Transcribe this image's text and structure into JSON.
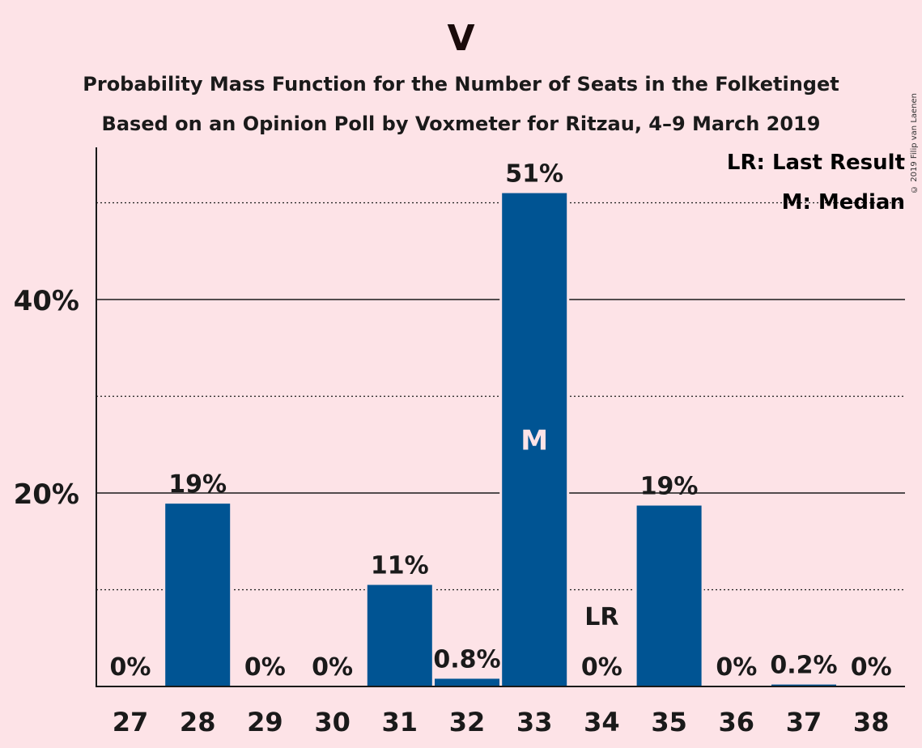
{
  "header": {
    "title": "V",
    "subtitle1": "Probability Mass Function for the Number of Seats in the Folketinget",
    "subtitle2": "Based on an Opinion Poll by Voxmeter for Ritzau, 4–9 March 2019",
    "copyright": "© 2019 Filip van Laenen"
  },
  "legend": {
    "last_result": "LR: Last Result",
    "median": "M: Median"
  },
  "colors": {
    "bar": "#005493",
    "background": "#fde3e7",
    "text": "#1a1a1a",
    "median_marker": "#fde3e7"
  },
  "chart_data": {
    "type": "bar",
    "categories": [
      "27",
      "28",
      "29",
      "30",
      "31",
      "32",
      "33",
      "34",
      "35",
      "36",
      "37",
      "38"
    ],
    "values": [
      0,
      18.9,
      0,
      0,
      10.5,
      0.8,
      51,
      0,
      18.7,
      0,
      0.2,
      0
    ],
    "data_labels": [
      "0%",
      "19%",
      "0%",
      "0%",
      "11%",
      "0.8%",
      "51%",
      "0%",
      "19%",
      "0%",
      "0.2%",
      "0%"
    ],
    "ylim": [
      0,
      55
    ],
    "y_ticks_major": [
      20,
      40
    ],
    "y_tick_labels": [
      "20%",
      "40%"
    ],
    "y_ticks_minor": [
      10,
      30,
      50
    ],
    "median_category": "33",
    "median_marker": "M",
    "last_result_category": "34",
    "last_result_marker": "LR"
  }
}
